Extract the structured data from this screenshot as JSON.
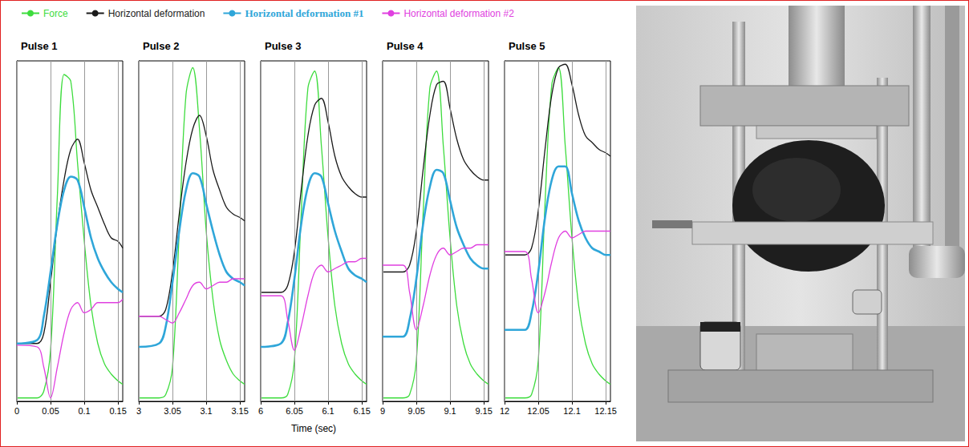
{
  "chart_data": [
    {
      "type": "line",
      "title": "Pulse 1",
      "legend": "top left",
      "grid": true,
      "tick_labels": "x",
      "x": [
        0,
        0.03,
        0.04,
        0.05,
        0.06,
        0.07,
        0.08,
        0.09,
        0.1,
        0.11,
        0.12,
        0.13,
        0.14,
        0.15,
        0.157
      ],
      "xlim": [
        0,
        0.157
      ],
      "xticks": [
        0,
        0.05,
        0.1,
        0.15
      ],
      "ylim": [
        0,
        100
      ],
      "series": [
        {
          "name": "Force",
          "color": "#3ddc3d",
          "values": [
            1,
            1,
            3,
            15,
            60,
            96,
            94,
            70,
            47,
            28,
            17,
            11,
            8,
            6,
            5
          ]
        },
        {
          "name": "Horizontal deformation",
          "color": "#1a1a1a",
          "values": [
            17,
            17,
            20,
            35,
            52,
            65,
            74,
            77,
            70,
            62,
            57,
            52,
            48,
            47,
            45
          ]
        },
        {
          "name": "Horizontal deformation #1",
          "color": "#2fa6d9",
          "values": [
            17,
            18,
            25,
            38,
            52,
            62,
            66,
            65,
            57,
            48,
            42,
            38,
            35,
            33,
            32
          ]
        },
        {
          "name": "Horizontal deformation #2",
          "color": "#e040e0",
          "values": [
            16.5,
            16,
            10,
            1,
            10,
            20,
            27,
            29,
            26,
            27,
            29,
            29,
            29,
            29,
            30
          ]
        }
      ]
    },
    {
      "type": "line",
      "title": "Pulse 2",
      "grid": true,
      "tick_labels": "x",
      "x": [
        3,
        3.03,
        3.04,
        3.05,
        3.06,
        3.07,
        3.08,
        3.09,
        3.1,
        3.11,
        3.12,
        3.13,
        3.14,
        3.15,
        3.157
      ],
      "xlim": [
        3,
        3.157
      ],
      "xticks": [
        3,
        3.05,
        3.1,
        3.15
      ],
      "ylim": [
        0,
        100
      ],
      "series": [
        {
          "name": "Force",
          "color": "#3ddc3d",
          "values": [
            1,
            1,
            2,
            10,
            50,
            90,
            98,
            80,
            50,
            30,
            18,
            12,
            8,
            6,
            5
          ]
        },
        {
          "name": "Horizontal deformation",
          "color": "#1a1a1a",
          "values": [
            25,
            25,
            27,
            38,
            55,
            70,
            80,
            84,
            78,
            68,
            62,
            57,
            55,
            54,
            53
          ]
        },
        {
          "name": "Horizontal deformation #1",
          "color": "#2fa6d9",
          "values": [
            16,
            17,
            22,
            35,
            50,
            62,
            67,
            66,
            58,
            50,
            43,
            38,
            36,
            35,
            34
          ]
        },
        {
          "name": "Horizontal deformation #2",
          "color": "#e040e0",
          "values": [
            25,
            25,
            24,
            23,
            26,
            30,
            34,
            35,
            33,
            34,
            35,
            35,
            36,
            36,
            36
          ]
        }
      ]
    },
    {
      "type": "line",
      "title": "Pulse 3",
      "xlabel": "Time (sec)",
      "grid": true,
      "tick_labels": "x",
      "x": [
        6,
        6.03,
        6.04,
        6.05,
        6.06,
        6.07,
        6.08,
        6.09,
        6.1,
        6.11,
        6.12,
        6.13,
        6.14,
        6.15,
        6.157
      ],
      "xlim": [
        6,
        6.157
      ],
      "xticks": [
        6,
        6.05,
        6.1,
        6.15
      ],
      "ylim": [
        0,
        100
      ],
      "series": [
        {
          "name": "Force",
          "color": "#3ddc3d",
          "values": [
            1,
            1,
            2,
            12,
            55,
            92,
            97,
            75,
            48,
            28,
            17,
            11,
            8,
            6,
            5
          ]
        },
        {
          "name": "Horizontal deformation",
          "color": "#1a1a1a",
          "values": [
            32,
            32,
            34,
            44,
            62,
            78,
            87,
            89,
            82,
            72,
            66,
            63,
            61,
            60,
            60
          ]
        },
        {
          "name": "Horizontal deformation #1",
          "color": "#2fa6d9",
          "values": [
            16,
            17,
            23,
            36,
            52,
            63,
            67,
            66,
            58,
            50,
            44,
            39,
            37,
            36,
            35
          ]
        },
        {
          "name": "Horizontal deformation #2",
          "color": "#e040e0",
          "values": [
            31,
            31,
            24,
            15,
            22,
            31,
            38,
            40,
            38,
            39,
            40,
            41,
            41,
            42,
            42
          ]
        }
      ]
    },
    {
      "type": "line",
      "title": "Pulse 4",
      "grid": true,
      "tick_labels": "x",
      "x": [
        9,
        9.03,
        9.04,
        9.05,
        9.06,
        9.07,
        9.08,
        9.09,
        9.1,
        9.11,
        9.12,
        9.13,
        9.14,
        9.15,
        9.157
      ],
      "xlim": [
        9,
        9.157
      ],
      "xticks": [
        9,
        9.05,
        9.1,
        9.15
      ],
      "ylim": [
        0,
        100
      ],
      "series": [
        {
          "name": "Force",
          "color": "#3ddc3d",
          "values": [
            1,
            1,
            2,
            12,
            55,
            92,
            97,
            75,
            48,
            28,
            17,
            11,
            8,
            6,
            5
          ]
        },
        {
          "name": "Horizontal deformation",
          "color": "#1a1a1a",
          "values": [
            38,
            38,
            40,
            50,
            68,
            84,
            93,
            94,
            86,
            77,
            71,
            68,
            66,
            65,
            65
          ]
        },
        {
          "name": "Horizontal deformation #1",
          "color": "#2fa6d9",
          "values": [
            19,
            19,
            24,
            36,
            52,
            63,
            68,
            67,
            59,
            51,
            46,
            42,
            40,
            39,
            39
          ]
        },
        {
          "name": "Horizontal deformation #2",
          "color": "#e040e0",
          "values": [
            40,
            40,
            32,
            21,
            28,
            37,
            43,
            45,
            43,
            44,
            45,
            45,
            46,
            46,
            46
          ]
        }
      ]
    },
    {
      "type": "line",
      "title": "Pulse 5",
      "grid": true,
      "tick_labels": "x",
      "x": [
        12,
        12.03,
        12.04,
        12.05,
        12.06,
        12.07,
        12.08,
        12.09,
        12.1,
        12.11,
        12.12,
        12.13,
        12.14,
        12.15,
        12.157
      ],
      "xlim": [
        12,
        12.157
      ],
      "xticks": [
        12,
        12.05,
        12.1,
        12.15
      ],
      "ylim": [
        0,
        100
      ],
      "series": [
        {
          "name": "Force",
          "color": "#3ddc3d",
          "values": [
            1,
            1,
            2,
            12,
            58,
            93,
            98,
            75,
            48,
            28,
            17,
            11,
            8,
            6,
            5
          ]
        },
        {
          "name": "Horizontal deformation",
          "color": "#1a1a1a",
          "values": [
            43,
            43,
            45,
            56,
            74,
            90,
            98,
            99,
            93,
            84,
            78,
            76,
            74,
            73,
            72
          ]
        },
        {
          "name": "Horizontal deformation #1",
          "color": "#2fa6d9",
          "values": [
            21,
            21,
            26,
            38,
            54,
            65,
            69,
            69,
            61,
            53,
            48,
            45,
            44,
            43,
            43
          ]
        },
        {
          "name": "Horizontal deformation #2",
          "color": "#e040e0",
          "values": [
            44,
            44,
            36,
            26,
            32,
            41,
            48,
            50,
            48,
            49,
            50,
            50,
            50,
            50,
            50
          ]
        }
      ]
    }
  ]
}
